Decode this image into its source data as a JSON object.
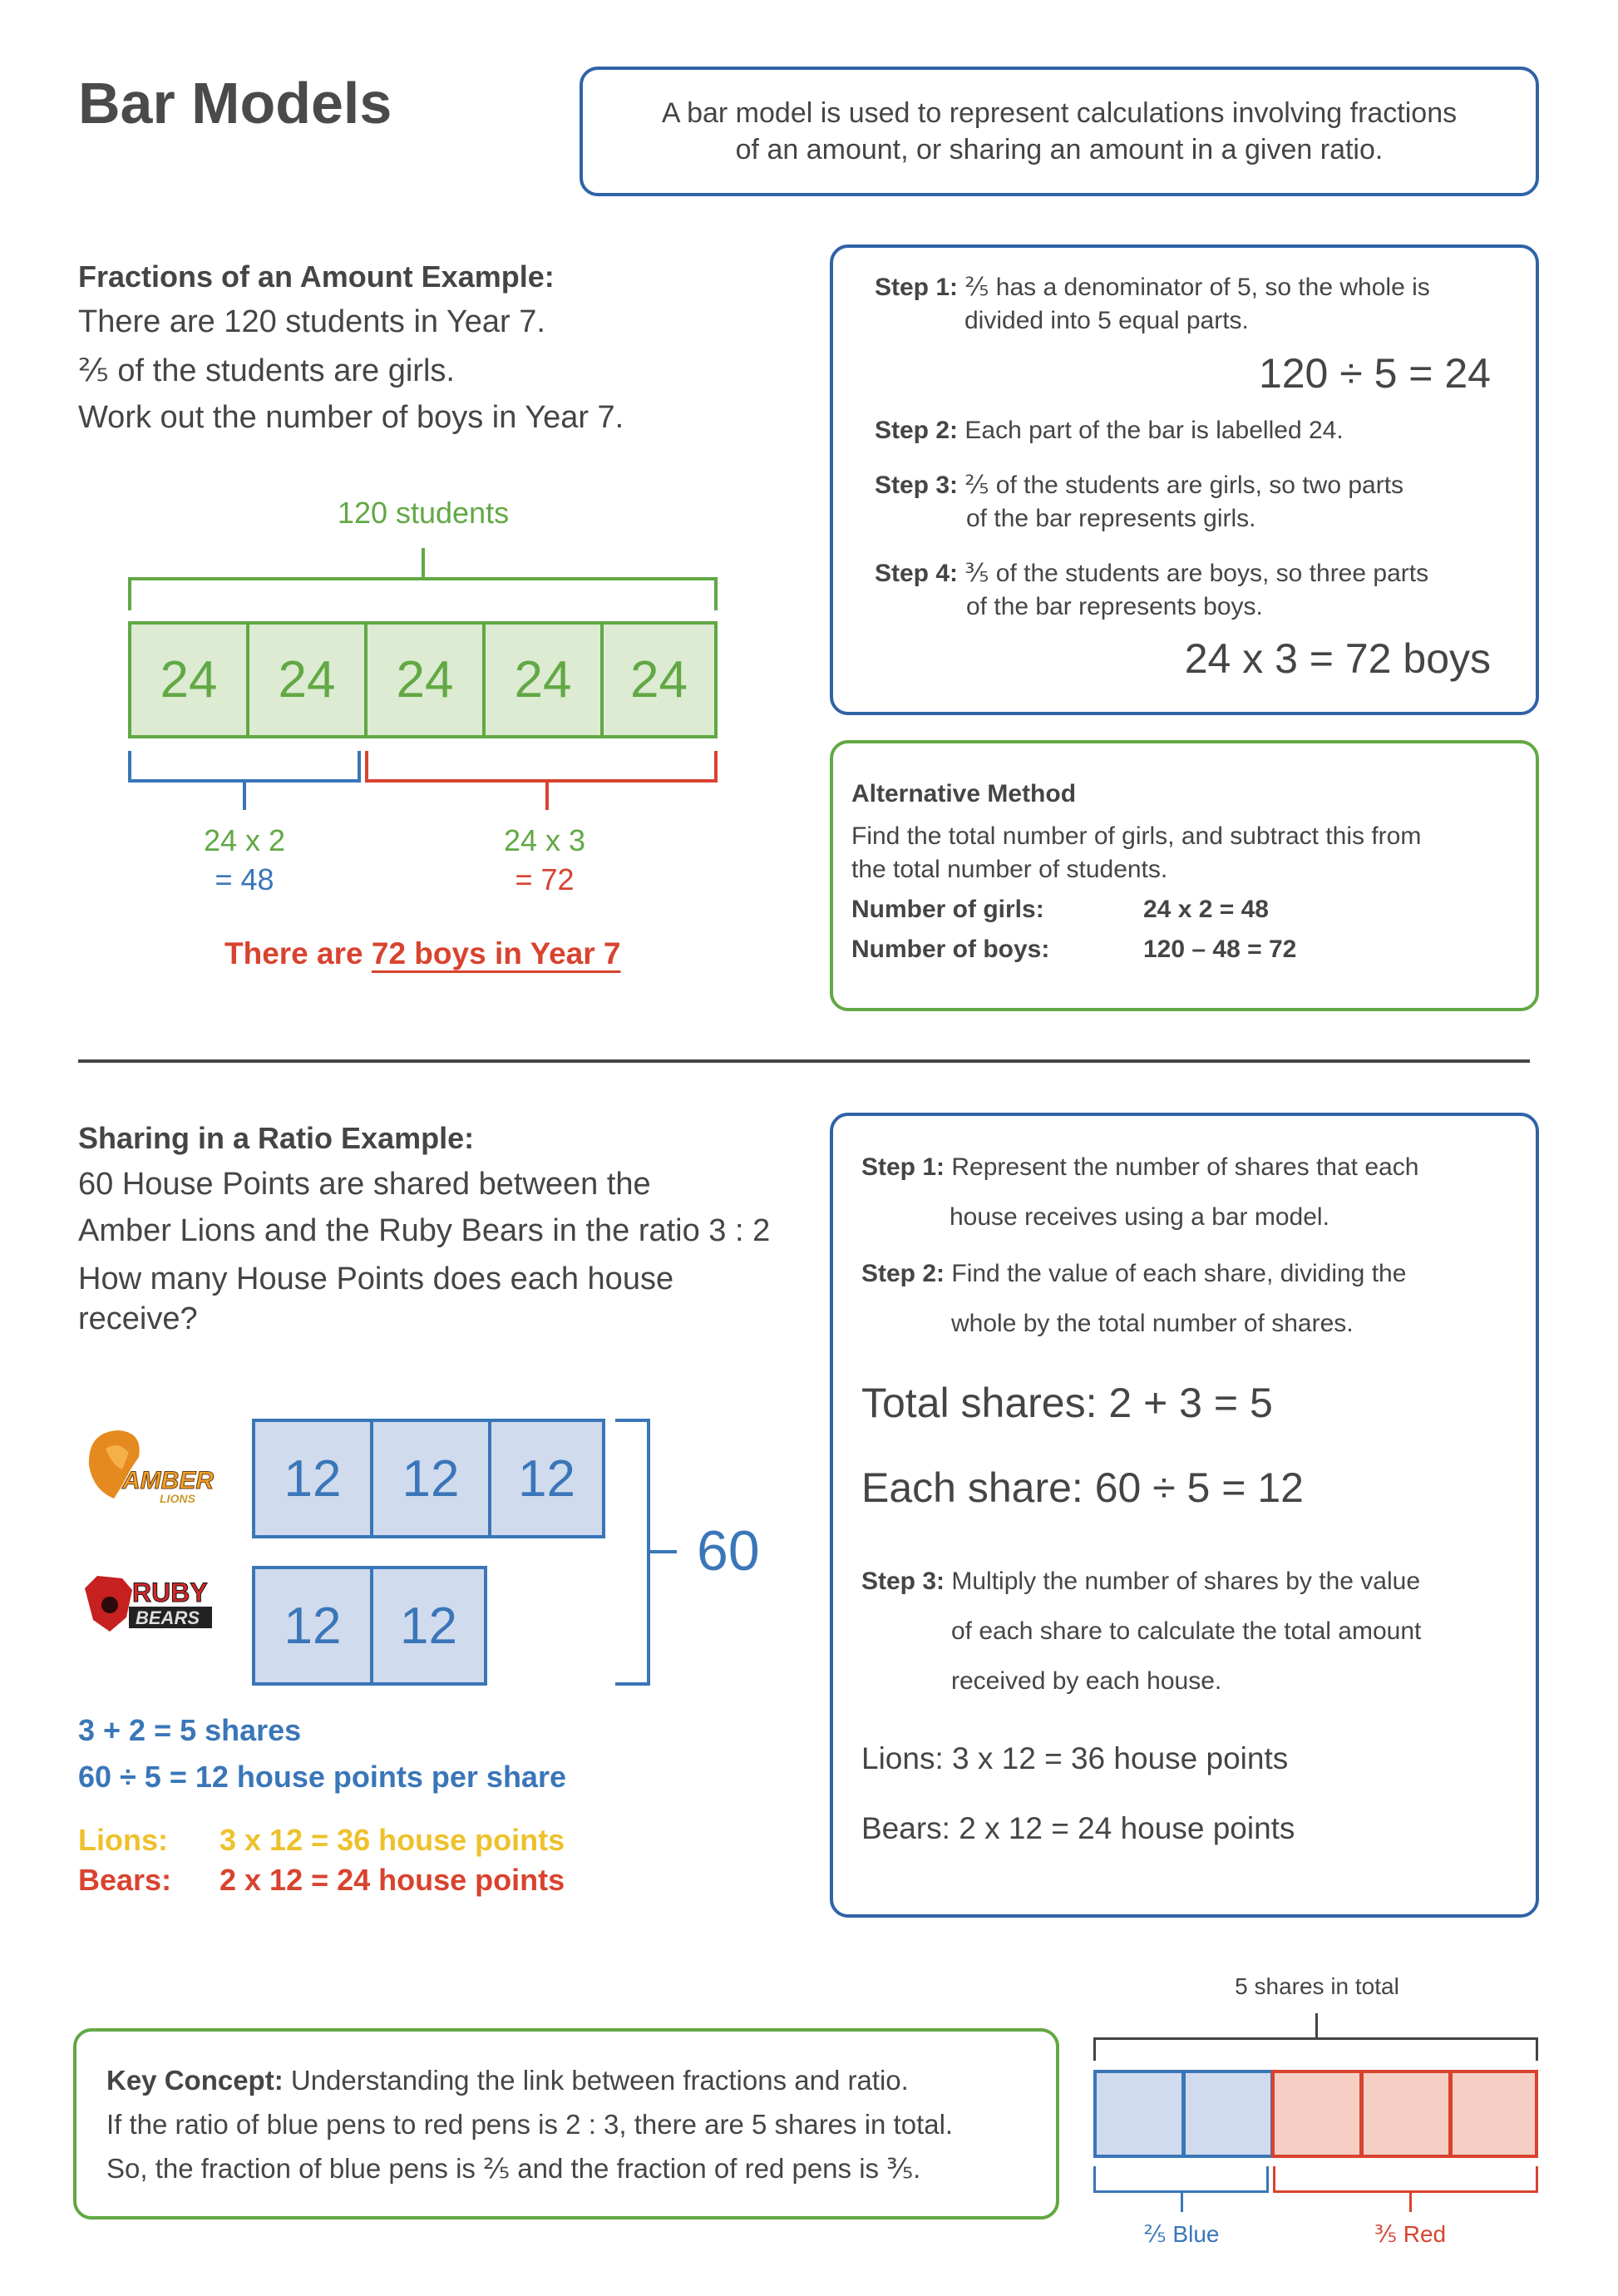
{
  "title": "Bar Models",
  "intro": [
    "A bar model is used to represent calculations involving fractions",
    "of an amount, or sharing an amount in a given ratio."
  ],
  "fractions": {
    "heading": "Fractions of an Amount Example:",
    "lines": [
      "There are 120 students in Year 7.",
      "⅖ of the students are girls.",
      "Work out the number of boys in Year 7."
    ],
    "total_label": "120 students",
    "cells": [
      "24",
      "24",
      "24",
      "24",
      "24"
    ],
    "girls_calc": [
      "24 x 2",
      "= 48"
    ],
    "boys_calc": [
      "24 x 3",
      "= 72"
    ],
    "answer_prefix": "There are",
    "answer_emph": "72 boys in Year 7",
    "steps": [
      {
        "label": "Step 1:",
        "text": [
          "⅖ has a denominator of 5, so the whole is",
          "divided into 5 equal parts."
        ]
      },
      {
        "label": "Step 2:",
        "text": [
          "Each part of the bar is labelled 24."
        ]
      },
      {
        "label": "Step 3:",
        "text": [
          "⅖ of the students are girls, so two parts",
          "of the bar represents girls."
        ]
      },
      {
        "label": "Step 4:",
        "text": [
          "⅗ of the students are boys, so three parts",
          "of the bar represents boys."
        ]
      }
    ],
    "eq1": "120 ÷ 5 = 24",
    "eq2": "24 x 3 = 72 boys",
    "alt": {
      "heading": "Alternative Method",
      "text": [
        "Find the total number of girls, and subtract this from",
        "the total number of students."
      ],
      "rows": [
        {
          "label": "Number of girls:",
          "value": "24 x 2 = 48"
        },
        {
          "label": "Number of boys:",
          "value": "120 – 48 = 72"
        }
      ]
    }
  },
  "ratio": {
    "heading": "Sharing in a Ratio Example:",
    "lines": [
      "60 House Points are shared between the",
      "Amber Lions and the Ruby Bears in the ratio 3 : 2",
      "How many House Points does each house",
      "receive?"
    ],
    "lions_logo": [
      "AMBER",
      "LIONS"
    ],
    "bears_logo": [
      "RUBY",
      "BEARS"
    ],
    "lions_cells": [
      "12",
      "12",
      "12"
    ],
    "bears_cells": [
      "12",
      "12"
    ],
    "total": "60",
    "calc1": "3 + 2 = 5 shares",
    "calc2": "60 ÷ 5 = 12 house points per share",
    "lions_label": "Lions:",
    "lions_value": "3 x 12 = 36 house points",
    "bears_label": "Bears:",
    "bears_value": "2 x 12 = 24 house points",
    "steps": [
      {
        "label": "Step 1:",
        "text": [
          "Represent the number of shares that each",
          "house receives using a bar model."
        ]
      },
      {
        "label": "Step 2:",
        "text": [
          "Find the value of each share, dividing the",
          "whole by the total number of shares."
        ]
      },
      {
        "label": "Step 3:",
        "text": [
          "Multiply the number of shares by the value",
          "of each share to calculate the total amount",
          "received by each house."
        ]
      }
    ],
    "total_shares": "Total shares: 2 + 3 = 5",
    "each_share": "Each share: 60 ÷ 5 = 12",
    "lions_result": "Lions: 3 x 12 = 36 house points",
    "bears_result": "Bears: 2 x 12 = 24 house points"
  },
  "key": {
    "label": "Key Concept:",
    "lines": [
      "Understanding the link between fractions and ratio.",
      "If the ratio of blue pens to red pens is 2 : 3, there are 5 shares in total.",
      "So, the fraction of blue pens is ⅖ and the fraction of red pens is ⅗."
    ],
    "diagram_total": "5 shares in total",
    "blue_label": "⅖ Blue",
    "red_label": "⅗ Red"
  },
  "colors": {
    "green": "#62a845",
    "blue": "#3a76b8",
    "red": "#d8432f",
    "yellow": "#eec12c"
  }
}
